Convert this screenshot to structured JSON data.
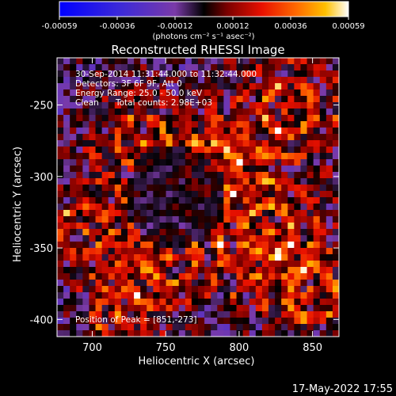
{
  "chart_data": {
    "type": "heatmap",
    "title": "Reconstructed RHESSI Image",
    "xlabel": "Heliocentric X (arcsec)",
    "ylabel": "Heliocentric Y (arcsec)",
    "xlim": [
      676,
      868
    ],
    "ylim": [
      -412,
      -217
    ],
    "xticks": [
      700,
      750,
      800,
      850
    ],
    "yticks": [
      -250,
      -300,
      -350,
      -400
    ],
    "colorbar": {
      "min": -0.00059,
      "max": 0.00059,
      "ticks": [
        "-0.00059",
        "-0.00036",
        "-0.00012",
        "0.00012",
        "0.00036",
        "0.00059"
      ],
      "unit_label": "(photons cm⁻² s⁻¹ asec⁻²)"
    },
    "annotations": {
      "time_range": "30-Sep-2014 11:31:44.000 to 11:32:44.000",
      "detectors": "Detectors: 3F 6F 9F, Att 0",
      "energy": "Energy Range: 25.0 - 50.0 keV",
      "method": "Clean",
      "counts": "Total counts: 2.98E+03",
      "peak": "Position of Peak = [851,-273]"
    },
    "peak": [
      851,
      -273
    ]
  },
  "footer": {
    "timestamp": "17-May-2022 17:55"
  }
}
